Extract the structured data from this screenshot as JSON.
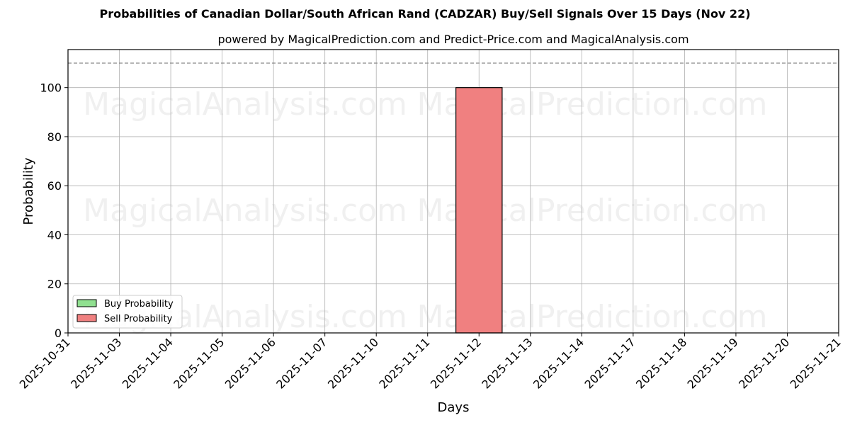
{
  "title": "Probabilities of Canadian Dollar/South African Rand (CADZAR) Buy/Sell Signals Over 15 Days (Nov 22)",
  "subtitle": "powered by MagicalPrediction.com and Predict-Price.com and MagicalAnalysis.com",
  "watermarks": [
    "MagicalAnalysis.com",
    "MagicalPrediction.com"
  ],
  "colors": {
    "buy": "#90e090",
    "sell": "#f08080",
    "grid": "#b0b0b0",
    "threshold": "#808080"
  },
  "chart_data": {
    "type": "bar",
    "title": "Probabilities of Canadian Dollar/South African Rand (CADZAR) Buy/Sell Signals Over 15 Days (Nov 22)",
    "subtitle": "powered by MagicalPrediction.com and Predict-Price.com and MagicalAnalysis.com",
    "xlabel": "Days",
    "ylabel": "Probability",
    "categories": [
      "2025-10-31",
      "2025-11-03",
      "2025-11-04",
      "2025-11-05",
      "2025-11-06",
      "2025-11-07",
      "2025-11-10",
      "2025-11-11",
      "2025-11-12",
      "2025-11-13",
      "2025-11-14",
      "2025-11-17",
      "2025-11-18",
      "2025-11-19",
      "2025-11-20",
      "2025-11-21"
    ],
    "series": [
      {
        "name": "Buy Probability",
        "color": "#90e090",
        "values": [
          0,
          0,
          0,
          0,
          0,
          0,
          0,
          0,
          0,
          0,
          0,
          0,
          0,
          0,
          0,
          0
        ]
      },
      {
        "name": "Sell Probability",
        "color": "#f08080",
        "values": [
          0,
          0,
          0,
          0,
          0,
          0,
          0,
          0,
          100,
          0,
          0,
          0,
          0,
          0,
          0,
          0
        ]
      }
    ],
    "yticks": [
      0,
      20,
      40,
      60,
      80,
      100
    ],
    "ylim": [
      0,
      115.5
    ],
    "threshold_line": {
      "y": 110,
      "style": "dashed"
    },
    "grid": true,
    "legend_position": "lower left"
  }
}
